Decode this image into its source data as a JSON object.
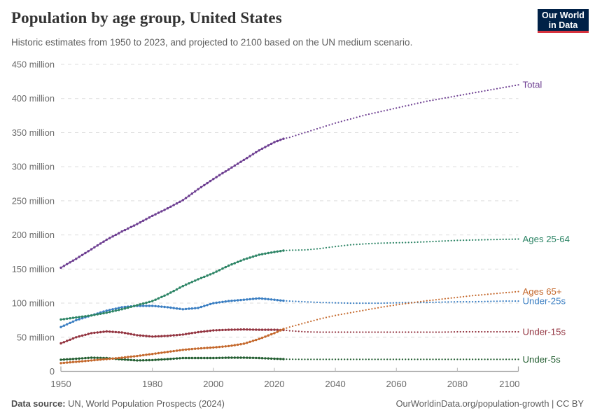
{
  "header": {
    "title": "Population by age group, United States",
    "subtitle": "Historic estimates from 1950 to 2023, and projected to 2100 based on the UN medium scenario.",
    "logo": {
      "line1": "Our World",
      "line2": "in Data",
      "bg_color": "#002147",
      "accent_color": "#d7333f"
    }
  },
  "footer": {
    "source_label": "Data source:",
    "source_text": " UN, World Population Prospects (2024)",
    "right_text": "OurWorldinData.org/population-growth | CC BY"
  },
  "chart_data": {
    "type": "line",
    "unit": "million people",
    "historic_end_year": 2023,
    "x_axis": {
      "range": [
        1950,
        2100
      ],
      "ticks": [
        1950,
        1980,
        2000,
        2020,
        2040,
        2060,
        2080,
        2100
      ],
      "tick_labels": [
        "1950",
        "1980",
        "2000",
        "2020",
        "2040",
        "2060",
        "2080",
        "2100"
      ]
    },
    "y_axis": {
      "range": [
        0,
        450
      ],
      "ticks": [
        0,
        50,
        100,
        150,
        200,
        250,
        300,
        350,
        400,
        450
      ],
      "tick_labels": [
        "0",
        "50 million",
        "100 million",
        "150 million",
        "200 million",
        "250 million",
        "300 million",
        "350 million",
        "400 million",
        "450 million"
      ],
      "grid": true
    },
    "years": [
      1950,
      1955,
      1960,
      1965,
      1970,
      1975,
      1980,
      1985,
      1990,
      1995,
      2000,
      2005,
      2010,
      2015,
      2020,
      2023,
      2025,
      2030,
      2035,
      2040,
      2045,
      2050,
      2055,
      2060,
      2065,
      2070,
      2075,
      2080,
      2085,
      2090,
      2095,
      2100
    ],
    "series": [
      {
        "name": "total",
        "label": "Total",
        "color": "#6d3e91",
        "values": [
          152,
          165,
          179,
          193,
          205,
          216,
          228,
          239,
          251,
          267,
          282,
          296,
          310,
          324,
          336,
          341,
          343,
          350,
          357,
          364,
          370,
          376,
          381,
          386,
          391,
          396,
          400,
          404,
          408,
          412,
          416,
          420
        ]
      },
      {
        "name": "under-25s",
        "label": "Under-25s",
        "color": "#3a7ec2",
        "values": [
          65,
          75,
          82,
          89,
          94,
          96,
          96,
          94,
          91,
          93,
          100,
          103,
          105,
          107,
          105,
          103.5,
          103,
          102,
          101,
          100.5,
          100,
          100,
          100,
          100.5,
          101,
          101,
          101.5,
          102,
          102,
          102.5,
          103,
          103
        ]
      },
      {
        "name": "ages-25-64",
        "label": "Ages 25-64",
        "color": "#2c8465",
        "values": [
          76,
          79,
          82,
          86,
          91,
          97,
          103,
          113,
          125,
          135,
          144,
          155,
          164,
          171,
          175,
          177,
          177.5,
          178,
          180,
          183,
          185.5,
          187,
          188,
          188.5,
          189,
          190,
          191,
          192,
          192.5,
          193,
          193.5,
          194
        ]
      },
      {
        "name": "under-15s",
        "label": "Under-15s",
        "color": "#933440",
        "values": [
          41,
          50,
          56,
          58.5,
          57,
          53,
          51,
          52,
          54,
          57.5,
          60,
          61,
          61.5,
          61,
          61,
          60.5,
          59.5,
          58,
          57.5,
          57.5,
          57.5,
          57.5,
          57.5,
          57.5,
          57.5,
          57.5,
          57.5,
          58,
          58,
          58,
          58,
          58
        ]
      },
      {
        "name": "under-5s",
        "label": "Under-5s",
        "color": "#235e31",
        "values": [
          17,
          18.5,
          20,
          19.5,
          17.5,
          16,
          16.5,
          18,
          19.5,
          19.5,
          19.5,
          20,
          20,
          19.5,
          18.5,
          18,
          17.8,
          17.5,
          17.5,
          17.5,
          17.5,
          17.5,
          17.5,
          17.5,
          17.5,
          17.5,
          17.5,
          17.5,
          17.5,
          17.5,
          17.5,
          17.5
        ]
      },
      {
        "name": "ages-65plus",
        "label": "Ages 65+",
        "color": "#c4682c",
        "values": [
          12,
          14,
          16,
          18,
          20,
          22.5,
          25.5,
          28.5,
          31.5,
          33.5,
          35,
          37,
          40.5,
          47.5,
          56,
          62,
          65,
          71,
          77,
          82,
          86,
          90,
          94,
          97.5,
          100.5,
          103.5,
          106,
          108.5,
          111,
          113,
          115,
          117
        ]
      }
    ],
    "legend_position": "right-of-line-ends",
    "colors": {
      "grid": "#dcdcdc",
      "axis": "#a3a3a3",
      "tick_text": "#6b6b6b"
    }
  }
}
